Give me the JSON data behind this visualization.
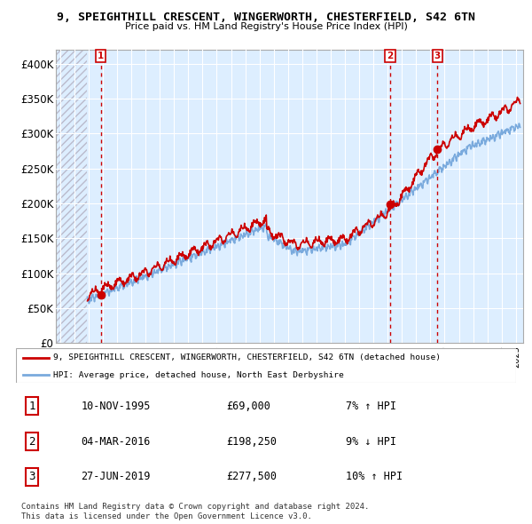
{
  "title": "9, SPEIGHTHILL CRESCENT, WINGERWORTH, CHESTERFIELD, S42 6TN",
  "subtitle": "Price paid vs. HM Land Registry's House Price Index (HPI)",
  "ylim": [
    0,
    420000
  ],
  "yticks": [
    0,
    50000,
    100000,
    150000,
    200000,
    250000,
    300000,
    350000,
    400000
  ],
  "ytick_labels": [
    "£0",
    "£50K",
    "£100K",
    "£150K",
    "£200K",
    "£250K",
    "£300K",
    "£350K",
    "£400K"
  ],
  "xlim_start": 1992.7,
  "xlim_end": 2025.5,
  "data_start": 1995.0,
  "sales": [
    {
      "date_num": 1995.86,
      "price": 69000,
      "label": "1"
    },
    {
      "date_num": 2016.17,
      "price": 198250,
      "label": "2"
    },
    {
      "date_num": 2019.49,
      "price": 277500,
      "label": "3"
    }
  ],
  "sale_table": [
    {
      "num": "1",
      "date": "10-NOV-1995",
      "price": "£69,000",
      "hpi": "7% ↑ HPI"
    },
    {
      "num": "2",
      "date": "04-MAR-2016",
      "price": "£198,250",
      "hpi": "9% ↓ HPI"
    },
    {
      "num": "3",
      "date": "27-JUN-2019",
      "price": "£277,500",
      "hpi": "10% ↑ HPI"
    }
  ],
  "legend_line1": "9, SPEIGHTHILL CRESCENT, WINGERWORTH, CHESTERFIELD, S42 6TN (detached house)",
  "legend_line2": "HPI: Average price, detached house, North East Derbyshire",
  "footer1": "Contains HM Land Registry data © Crown copyright and database right 2024.",
  "footer2": "This data is licensed under the Open Government Licence v3.0.",
  "red_color": "#cc0000",
  "blue_color": "#7aaadd",
  "plot_bg_color": "#ddeeff",
  "hatch_color": "#bbbbcc",
  "grid_color": "#ffffff",
  "border_color": "#aaaaaa"
}
